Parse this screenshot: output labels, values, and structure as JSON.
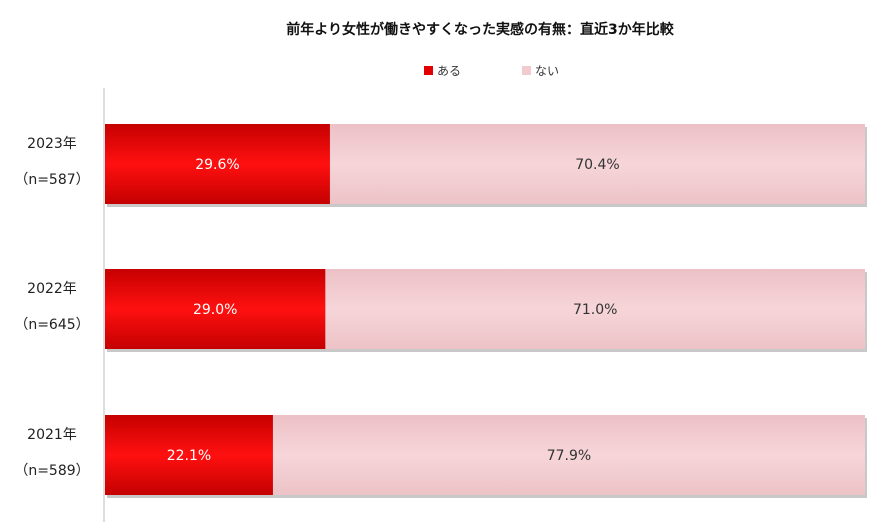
{
  "chart_data": {
    "type": "bar",
    "orientation": "horizontal",
    "stacked": "percent",
    "title": "前年より女性が働きやすくなった実感の有無：直近3か年比較",
    "legend_position": "top",
    "categories": [
      {
        "year": "2023年",
        "n": "（n=587）"
      },
      {
        "year": "2022年",
        "n": "（n=645）"
      },
      {
        "year": "2021年",
        "n": "（n=589）"
      }
    ],
    "series": [
      {
        "name": "ある",
        "color": "#e20000",
        "values": [
          29.6,
          29.0,
          22.1
        ],
        "labels": [
          "29.6%",
          "29.0%",
          "22.1%"
        ],
        "label_color": "#ffffff"
      },
      {
        "name": "ない",
        "color": "#f2cbcf",
        "values": [
          70.4,
          71.0,
          77.9
        ],
        "labels": [
          "70.4%",
          "71.0%",
          "77.9%"
        ],
        "label_color": "#333333"
      }
    ],
    "xlim": [
      0,
      100
    ],
    "grid": false
  }
}
